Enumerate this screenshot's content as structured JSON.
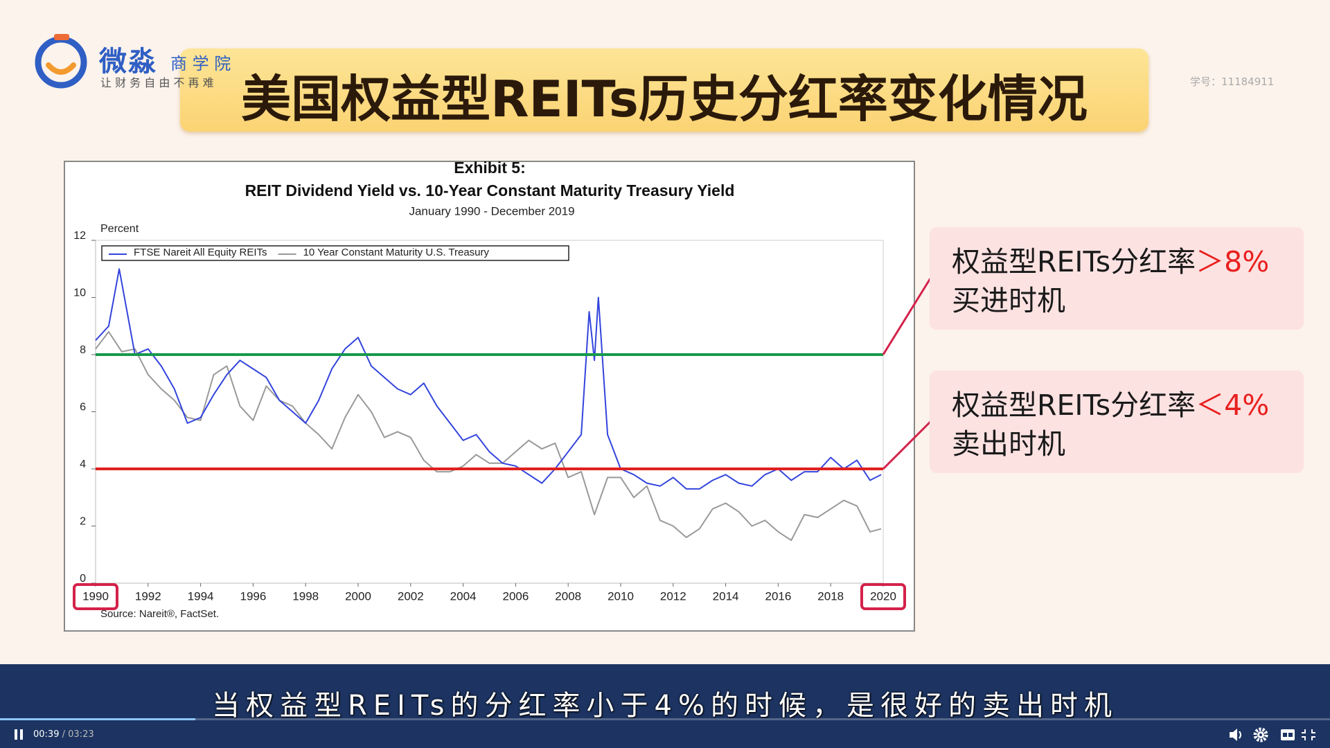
{
  "logo": {
    "name": "微淼",
    "school": "商 学 院",
    "slogan": "让 财 务 自 由 不 再 难"
  },
  "slide_title": "美国权益型REITs历史分红率变化情况",
  "student_id": "学号：11184911",
  "chart_data": {
    "type": "line",
    "title": "Exhibit 5:",
    "subtitle": "REIT Dividend Yield vs. 10-Year Constant Maturity Treasury Yield",
    "date_range": "January 1990 - December 2019",
    "ylabel": "Percent",
    "source": "Source: Nareit®, FactSet.",
    "xlim": [
      1990,
      2020
    ],
    "xticks": [
      1990,
      1992,
      1994,
      1996,
      1998,
      2000,
      2002,
      2004,
      2006,
      2008,
      2010,
      2012,
      2014,
      2016,
      2018,
      2020
    ],
    "ylim": [
      0,
      12
    ],
    "yticks": [
      0,
      2,
      4,
      6,
      8,
      10,
      12
    ],
    "legend": "top-left",
    "series": [
      {
        "name": "FTSE Nareit All Equity REITs",
        "color": "#3344dd",
        "x": [
          1990.0,
          1990.5,
          1990.9,
          1991.5,
          1992.0,
          1992.5,
          1993.0,
          1993.5,
          1994.0,
          1994.5,
          1995.0,
          1995.5,
          1996.0,
          1996.5,
          1997.0,
          1997.5,
          1998.0,
          1998.5,
          1999.0,
          1999.5,
          2000.0,
          2000.5,
          2001.0,
          2001.5,
          2002.0,
          2002.5,
          2003.0,
          2003.5,
          2004.0,
          2004.5,
          2005.0,
          2005.5,
          2006.0,
          2006.5,
          2007.0,
          2007.5,
          2008.0,
          2008.5,
          2008.8,
          2009.0,
          2009.15,
          2009.5,
          2010.0,
          2010.5,
          2011.0,
          2011.5,
          2012.0,
          2012.5,
          2013.0,
          2013.5,
          2014.0,
          2014.5,
          2015.0,
          2015.5,
          2016.0,
          2016.5,
          2017.0,
          2017.5,
          2018.0,
          2018.5,
          2019.0,
          2019.5,
          2019.92
        ],
        "values": [
          8.5,
          9.0,
          11.0,
          8.0,
          8.2,
          7.6,
          6.8,
          5.6,
          5.8,
          6.6,
          7.3,
          7.8,
          7.5,
          7.2,
          6.4,
          6.0,
          5.6,
          6.4,
          7.5,
          8.2,
          8.6,
          7.6,
          7.2,
          6.8,
          6.6,
          7.0,
          6.2,
          5.6,
          5.0,
          5.2,
          4.6,
          4.2,
          4.1,
          3.8,
          3.5,
          4.0,
          4.6,
          5.2,
          9.5,
          7.8,
          10.0,
          5.2,
          4.0,
          3.8,
          3.5,
          3.4,
          3.7,
          3.3,
          3.3,
          3.6,
          3.8,
          3.5,
          3.4,
          3.8,
          4.0,
          3.6,
          3.9,
          3.9,
          4.4,
          4.0,
          4.3,
          3.6,
          3.8
        ]
      },
      {
        "name": "10 Year Constant Maturity U.S. Treasury",
        "color": "#999999",
        "x": [
          1990.0,
          1990.5,
          1991.0,
          1991.5,
          1992.0,
          1992.5,
          1993.0,
          1993.5,
          1994.0,
          1994.5,
          1995.0,
          1995.5,
          1996.0,
          1996.5,
          1997.0,
          1997.5,
          1998.0,
          1998.5,
          1999.0,
          1999.5,
          2000.0,
          2000.5,
          2001.0,
          2001.5,
          2002.0,
          2002.5,
          2003.0,
          2003.5,
          2004.0,
          2004.5,
          2005.0,
          2005.5,
          2006.0,
          2006.5,
          2007.0,
          2007.5,
          2008.0,
          2008.5,
          2009.0,
          2009.5,
          2010.0,
          2010.5,
          2011.0,
          2011.5,
          2012.0,
          2012.5,
          2013.0,
          2013.5,
          2014.0,
          2014.5,
          2015.0,
          2015.5,
          2016.0,
          2016.5,
          2017.0,
          2017.5,
          2018.0,
          2018.5,
          2019.0,
          2019.5,
          2019.92
        ],
        "values": [
          8.2,
          8.8,
          8.1,
          8.2,
          7.3,
          6.8,
          6.4,
          5.8,
          5.7,
          7.3,
          7.6,
          6.2,
          5.7,
          6.9,
          6.4,
          6.2,
          5.6,
          5.2,
          4.7,
          5.8,
          6.6,
          6.0,
          5.1,
          5.3,
          5.1,
          4.3,
          3.9,
          3.9,
          4.1,
          4.5,
          4.2,
          4.2,
          4.6,
          5.0,
          4.7,
          4.9,
          3.7,
          3.9,
          2.4,
          3.7,
          3.7,
          3.0,
          3.4,
          2.2,
          2.0,
          1.6,
          1.9,
          2.6,
          2.8,
          2.5,
          2.0,
          2.2,
          1.8,
          1.5,
          2.4,
          2.3,
          2.6,
          2.9,
          2.7,
          1.8,
          1.9
        ]
      }
    ],
    "reference_lines": [
      {
        "value": 8,
        "color": "#17994a"
      },
      {
        "value": 4,
        "color": "#e0201e"
      }
    ]
  },
  "callouts": [
    {
      "text": "权益型REITs分红率",
      "highlight": "＞8%",
      "action": "买进时机"
    },
    {
      "text": "权益型REITs分红率",
      "highlight": "＜4%",
      "action": "卖出时机"
    }
  ],
  "caption": "当权益型REITs的分红率小于4%的时候，是很好的卖出时机",
  "player": {
    "current_time": "00:39",
    "separator": "/",
    "total_time": "03:23"
  }
}
